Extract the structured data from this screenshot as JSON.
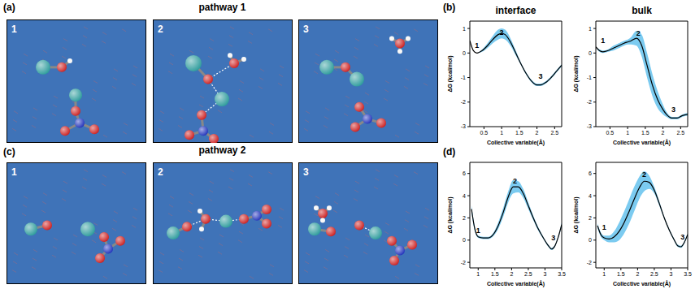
{
  "figure": {
    "panel_labels": [
      "(a)",
      "(b)",
      "(c)",
      "(d)"
    ],
    "pathways": [
      {
        "title": "pathway 1",
        "frames": [
          "1",
          "2",
          "3"
        ]
      },
      {
        "title": "pathway 2",
        "frames": [
          "1",
          "2",
          "3"
        ]
      }
    ]
  },
  "chart_data": [
    {
      "type": "line",
      "title": "interface",
      "xlabel": "Collective variable(Å)",
      "ylabel": "ΔG (kcal/mol)",
      "xlim": [
        0.1,
        2.7
      ],
      "xticks": [
        0.5,
        1,
        1.5,
        2,
        2.5
      ],
      "ylim": [
        -3,
        1.3
      ],
      "yticks": [
        -3,
        -2,
        -1,
        0,
        1
      ],
      "series": [
        {
          "color": "#000000",
          "x": [
            0.1,
            0.2,
            0.3,
            0.45,
            0.6,
            0.75,
            0.9,
            1.0,
            1.1,
            1.25,
            1.4,
            1.55,
            1.7,
            1.85,
            2.0,
            2.1,
            2.25,
            2.4,
            2.55,
            2.7
          ],
          "values": [
            0.5,
            0.1,
            0.0,
            0.1,
            0.3,
            0.55,
            0.75,
            0.8,
            0.75,
            0.45,
            0.0,
            -0.45,
            -0.85,
            -1.15,
            -1.3,
            -1.3,
            -1.2,
            -1.0,
            -0.75,
            -0.5
          ],
          "error": [
            0,
            0,
            0,
            0.05,
            0.1,
            0.15,
            0.2,
            0.2,
            0.2,
            0.15,
            0.1,
            0.05,
            0.05,
            0.05,
            0.05,
            0.05,
            0.05,
            0.05,
            0.05,
            0.05
          ]
        }
      ],
      "annotations": [
        {
          "text": "1",
          "x": 0.3,
          "y": 0.3
        },
        {
          "text": "2",
          "x": 1.0,
          "y": 0.85
        },
        {
          "text": "3",
          "x": 2.1,
          "y": -0.95
        }
      ]
    },
    {
      "type": "line",
      "title": "bulk",
      "xlabel": "Collective variable(Å)",
      "ylabel": "ΔG (kcal/mol)",
      "xlim": [
        0.1,
        2.7
      ],
      "xticks": [
        0.5,
        1,
        1.5,
        2,
        2.5
      ],
      "ylim": [
        -3,
        1.3
      ],
      "yticks": [
        -3,
        -2,
        -1,
        0,
        1
      ],
      "series": [
        {
          "color": "#000000",
          "x": [
            0.1,
            0.2,
            0.3,
            0.45,
            0.6,
            0.75,
            0.9,
            1.0,
            1.1,
            1.25,
            1.4,
            1.55,
            1.7,
            1.85,
            2.0,
            2.1,
            2.25,
            2.4,
            2.55,
            2.7
          ],
          "values": [
            0.25,
            0.1,
            0.05,
            0.1,
            0.2,
            0.3,
            0.4,
            0.45,
            0.5,
            0.6,
            0.3,
            -0.5,
            -1.3,
            -1.9,
            -2.3,
            -2.5,
            -2.65,
            -2.65,
            -2.55,
            -2.5
          ],
          "error": [
            0,
            0.05,
            0.05,
            0.05,
            0.1,
            0.1,
            0.1,
            0.1,
            0.15,
            0.3,
            0.45,
            0.5,
            0.45,
            0.35,
            0.2,
            0.1,
            0.05,
            0.05,
            0.05,
            0.05
          ]
        }
      ],
      "annotations": [
        {
          "text": "1",
          "x": 0.3,
          "y": 0.5
        },
        {
          "text": "2",
          "x": 1.3,
          "y": 0.8
        },
        {
          "text": "3",
          "x": 2.3,
          "y": -2.3
        }
      ]
    },
    {
      "type": "line",
      "xlabel": "Collective variable(Å)",
      "ylabel": "ΔG (kcal/mol)",
      "xlim": [
        0.75,
        3.5
      ],
      "xticks": [
        1,
        1.5,
        2,
        2.5,
        3,
        3.5
      ],
      "ylim": [
        -2.5,
        7
      ],
      "yticks": [
        -2,
        0,
        2,
        4,
        6
      ],
      "series": [
        {
          "color": "#000000",
          "x": [
            0.8,
            0.9,
            1.0,
            1.15,
            1.3,
            1.45,
            1.6,
            1.75,
            1.9,
            2.05,
            2.2,
            2.35,
            2.5,
            2.65,
            2.8,
            2.95,
            3.1,
            3.2,
            3.3,
            3.4,
            3.5
          ],
          "values": [
            2.8,
            1.0,
            0.3,
            0.2,
            0.2,
            0.5,
            1.3,
            2.5,
            3.9,
            4.8,
            4.8,
            4.2,
            3.1,
            2.0,
            1.0,
            0.2,
            -0.5,
            -0.8,
            -0.5,
            0.3,
            1.4
          ],
          "error": [
            0.3,
            0.2,
            0.1,
            0.1,
            0.1,
            0.15,
            0.3,
            0.4,
            0.5,
            0.6,
            0.5,
            0.4,
            0.3,
            0.2,
            0.15,
            0.1,
            0.1,
            0.1,
            0.1,
            0.1,
            0.2
          ]
        }
      ],
      "annotations": [
        {
          "text": "1",
          "x": 1.0,
          "y": 0.9
        },
        {
          "text": "2",
          "x": 2.1,
          "y": 5.3
        },
        {
          "text": "3",
          "x": 3.25,
          "y": 0.2
        }
      ]
    },
    {
      "type": "line",
      "xlabel": "Collective variable(Å)",
      "ylabel": "ΔG (kcal/mol)",
      "xlim": [
        0.75,
        3.5
      ],
      "xticks": [
        1,
        1.5,
        2,
        2.5,
        3,
        3.5
      ],
      "ylim": [
        -2.5,
        7
      ],
      "yticks": [
        -2,
        0,
        2,
        4,
        6
      ],
      "series": [
        {
          "color": "#000000",
          "x": [
            0.8,
            0.9,
            1.0,
            1.15,
            1.3,
            1.45,
            1.6,
            1.75,
            1.9,
            2.05,
            2.2,
            2.35,
            2.5,
            2.65,
            2.8,
            2.95,
            3.1,
            3.2,
            3.3,
            3.4,
            3.5
          ],
          "values": [
            1.3,
            0.5,
            0.2,
            0.1,
            0.3,
            0.8,
            1.6,
            2.6,
            3.7,
            4.7,
            5.3,
            5.2,
            4.5,
            3.3,
            2.0,
            0.9,
            0.0,
            -0.5,
            -0.6,
            -0.2,
            0.5
          ],
          "error": [
            0.2,
            0.2,
            0.2,
            0.3,
            0.5,
            0.8,
            1.0,
            1.1,
            1.1,
            1.0,
            0.9,
            0.6,
            0.3,
            0.2,
            0.1,
            0.1,
            0.1,
            0.1,
            0.1,
            0.1,
            0.1
          ]
        }
      ],
      "annotations": [
        {
          "text": "1",
          "x": 1.0,
          "y": 1.2
        },
        {
          "text": "2",
          "x": 2.2,
          "y": 5.9
        },
        {
          "text": "3",
          "x": 3.35,
          "y": 0.3
        }
      ]
    }
  ]
}
